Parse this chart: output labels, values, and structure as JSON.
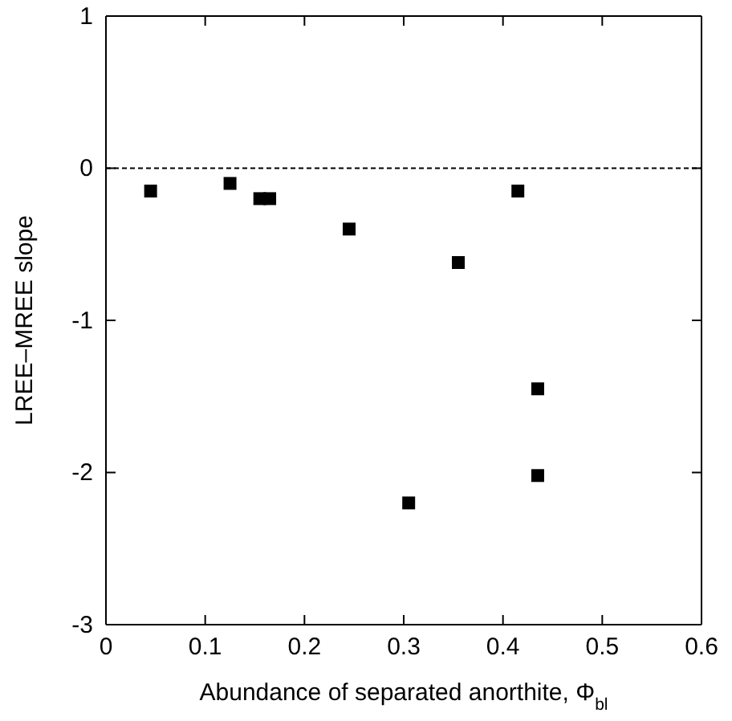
{
  "chart_data": {
    "type": "scatter",
    "xlabel": "Abundance of separated anorthite, Φ$_{bl}$",
    "ylabel": "LREE–MREE slope",
    "x": [
      0.045,
      0.125,
      0.155,
      0.165,
      0.245,
      0.355,
      0.415,
      0.435,
      0.435,
      0.305
    ],
    "series": [
      {
        "color": "#000000",
        "values": [
          -0.15,
          -0.1,
          -0.2,
          -0.2,
          -0.4,
          -0.62,
          -0.15,
          -1.45,
          -2.02,
          -2.2
        ]
      }
    ],
    "xlim": [
      0,
      0.6
    ],
    "xticks": [
      0,
      0.1,
      0.2,
      0.3,
      0.4,
      0.5,
      0.6
    ],
    "ylim": [
      -3,
      1
    ],
    "yticks": [
      -3,
      -2,
      -1,
      0,
      1
    ],
    "marker": "square",
    "grid": false,
    "ref_lines": [
      {
        "axis": "y",
        "value": 0,
        "color": "#000000",
        "line_style": "dashed"
      }
    ]
  }
}
